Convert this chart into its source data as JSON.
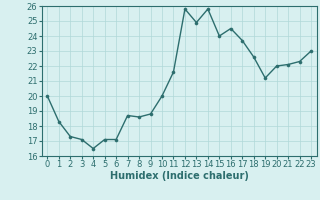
{
  "x": [
    0,
    1,
    2,
    3,
    4,
    5,
    6,
    7,
    8,
    9,
    10,
    11,
    12,
    13,
    14,
    15,
    16,
    17,
    18,
    19,
    20,
    21,
    22,
    23
  ],
  "y": [
    20.0,
    18.3,
    17.3,
    17.1,
    16.5,
    17.1,
    17.1,
    18.7,
    18.6,
    18.8,
    20.0,
    21.6,
    25.8,
    24.9,
    25.8,
    24.0,
    24.5,
    23.7,
    22.6,
    21.2,
    22.0,
    22.1,
    22.3,
    23.0
  ],
  "line_color": "#2d6e6e",
  "marker": "o",
  "marker_size": 2.2,
  "line_width": 1.0,
  "xlabel": "Humidex (Indice chaleur)",
  "xlabel_fontsize": 7,
  "xlabel_fontweight": "bold",
  "xlim": [
    -0.5,
    23.5
  ],
  "ylim": [
    16,
    26
  ],
  "yticks": [
    16,
    17,
    18,
    19,
    20,
    21,
    22,
    23,
    24,
    25,
    26
  ],
  "xticks": [
    0,
    1,
    2,
    3,
    4,
    5,
    6,
    7,
    8,
    9,
    10,
    11,
    12,
    13,
    14,
    15,
    16,
    17,
    18,
    19,
    20,
    21,
    22,
    23
  ],
  "tick_fontsize": 6,
  "grid_color": "#b0d8d8",
  "bg_color": "#d8f0f0",
  "figure_color": "#d8f0f0"
}
